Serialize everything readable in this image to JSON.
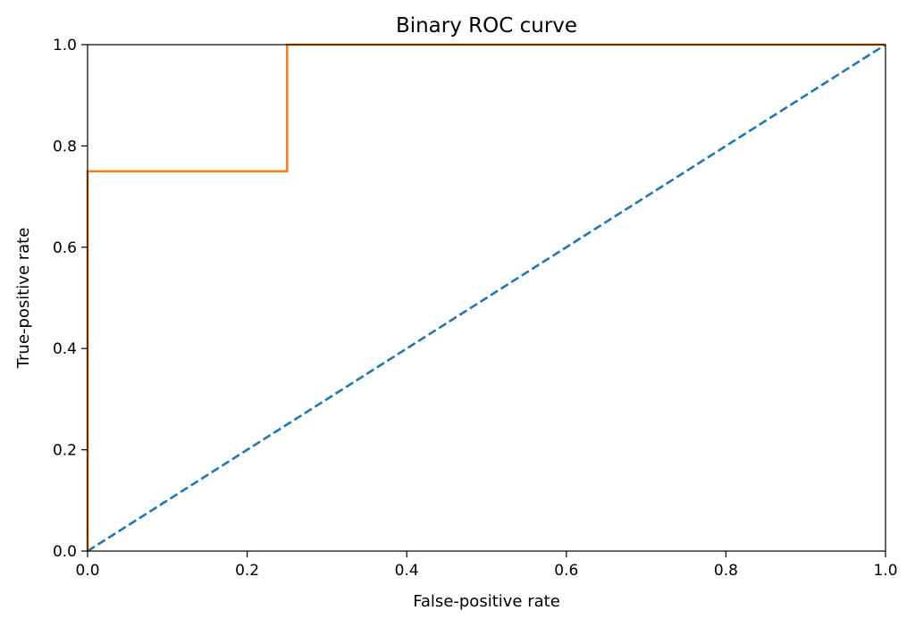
{
  "chart_data": {
    "type": "line",
    "title": "Binary ROC curve",
    "xlabel": "False-positive rate",
    "ylabel": "True-positive rate",
    "xlim": [
      0.0,
      1.0
    ],
    "ylim": [
      0.0,
      1.0
    ],
    "x_ticks": [
      "0.0",
      "0.2",
      "0.4",
      "0.6",
      "0.8",
      "1.0"
    ],
    "y_ticks": [
      "0.0",
      "0.2",
      "0.4",
      "0.6",
      "0.8",
      "1.0"
    ],
    "grid": false,
    "series": [
      {
        "style": "dashed",
        "color": "#1f77b4",
        "points": [
          [
            0.0,
            0.0
          ],
          [
            1.0,
            1.0
          ]
        ]
      },
      {
        "style": "solid",
        "color": "#ff7f0e",
        "points": [
          [
            0.0,
            0.0
          ],
          [
            0.0,
            0.75
          ],
          [
            0.25,
            0.75
          ],
          [
            0.25,
            1.0
          ],
          [
            1.0,
            1.0
          ]
        ]
      }
    ]
  }
}
